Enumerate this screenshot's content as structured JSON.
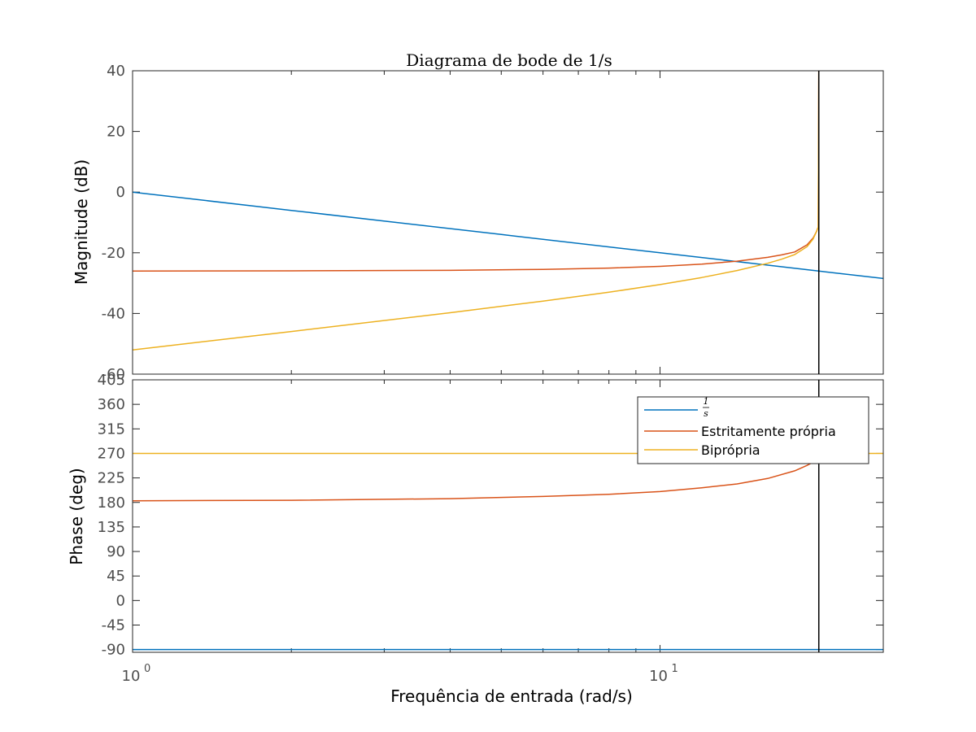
{
  "chart_data": {
    "type": "line",
    "title": "Diagrama de bode de 1/s",
    "xlabel": "Frequência de entrada  (rad/s)",
    "xscale": "log",
    "xlim": [
      1,
      26.5
    ],
    "x_ticks": [
      {
        "value": 1,
        "mantissa": "10",
        "exponent": "0"
      },
      {
        "value": 10,
        "mantissa": "10",
        "exponent": "1"
      }
    ],
    "vertical_marker": {
      "x": 20,
      "color": "#000000"
    },
    "magnitude": {
      "ylabel": "Magnitude (dB)",
      "ylim": [
        -60,
        40
      ],
      "yticks": [
        "40",
        "20",
        "0",
        "-20",
        "-40",
        "-60"
      ],
      "ytick_values": [
        40,
        20,
        0,
        -20,
        -40,
        -60
      ],
      "series": [
        {
          "name": "1/s",
          "color": "#0072BD",
          "x": [
            1,
            2,
            5,
            10,
            15,
            20,
            26.5
          ],
          "y": [
            0,
            -6.02,
            -13.98,
            -20,
            -23.52,
            -26.02,
            -28.46
          ]
        },
        {
          "name": "Estritamente própria",
          "color": "#D95319",
          "x": [
            1,
            2,
            4,
            6,
            8,
            10,
            12,
            14,
            16,
            17,
            18,
            19,
            19.5,
            19.8,
            19.95,
            20
          ],
          "y": [
            -26,
            -25.96,
            -25.79,
            -25.48,
            -25.05,
            -24.47,
            -23.73,
            -22.77,
            -21.51,
            -20.71,
            -19.74,
            -17.37,
            -15.17,
            -13.0,
            -11.5,
            40
          ]
        },
        {
          "name": "Biprópria",
          "color": "#EDB120",
          "x": [
            1,
            2,
            4,
            6,
            8,
            10,
            12,
            14,
            16,
            17,
            18,
            19,
            19.5,
            19.8,
            19.95,
            20
          ],
          "y": [
            -52,
            -45.94,
            -39.76,
            -35.92,
            -33.01,
            -30.49,
            -28.14,
            -25.85,
            -23.46,
            -22.11,
            -20.59,
            -18.0,
            -15.5,
            -13.0,
            -11.5,
            40
          ]
        }
      ]
    },
    "phase": {
      "ylabel": "Phase (deg)",
      "ylim": [
        -95,
        405
      ],
      "yticks": [
        "405",
        "360",
        "315",
        "270",
        "225",
        "180",
        "135",
        "90",
        "45",
        "0",
        "-45",
        "-90"
      ],
      "ytick_values": [
        405,
        360,
        315,
        270,
        225,
        180,
        135,
        90,
        45,
        0,
        -45,
        -90
      ],
      "series": [
        {
          "name": "1/s",
          "color": "#0072BD",
          "x": [
            1,
            26.5
          ],
          "y": [
            -90,
            -90
          ]
        },
        {
          "name": "Estritamente própria",
          "color": "#D95319",
          "x": [
            1,
            2,
            4,
            6,
            8,
            10,
            12,
            14,
            16,
            18,
            19,
            19.6,
            19.9,
            20
          ],
          "y": [
            183,
            184,
            187,
            191,
            195,
            200,
            207,
            214,
            224,
            238,
            248,
            255,
            260,
            262
          ]
        },
        {
          "name": "Biprópria",
          "color": "#EDB120",
          "x": [
            1,
            26.5
          ],
          "y": [
            270,
            270
          ]
        }
      ]
    },
    "legend": {
      "position": "top-right of phase panel",
      "entries": [
        {
          "label_num": "1",
          "label_den": "s",
          "color": "#0072BD"
        },
        {
          "label": "Estritamente própria",
          "color": "#D95319"
        },
        {
          "label": "Biprópria",
          "color": "#EDB120"
        }
      ]
    }
  }
}
